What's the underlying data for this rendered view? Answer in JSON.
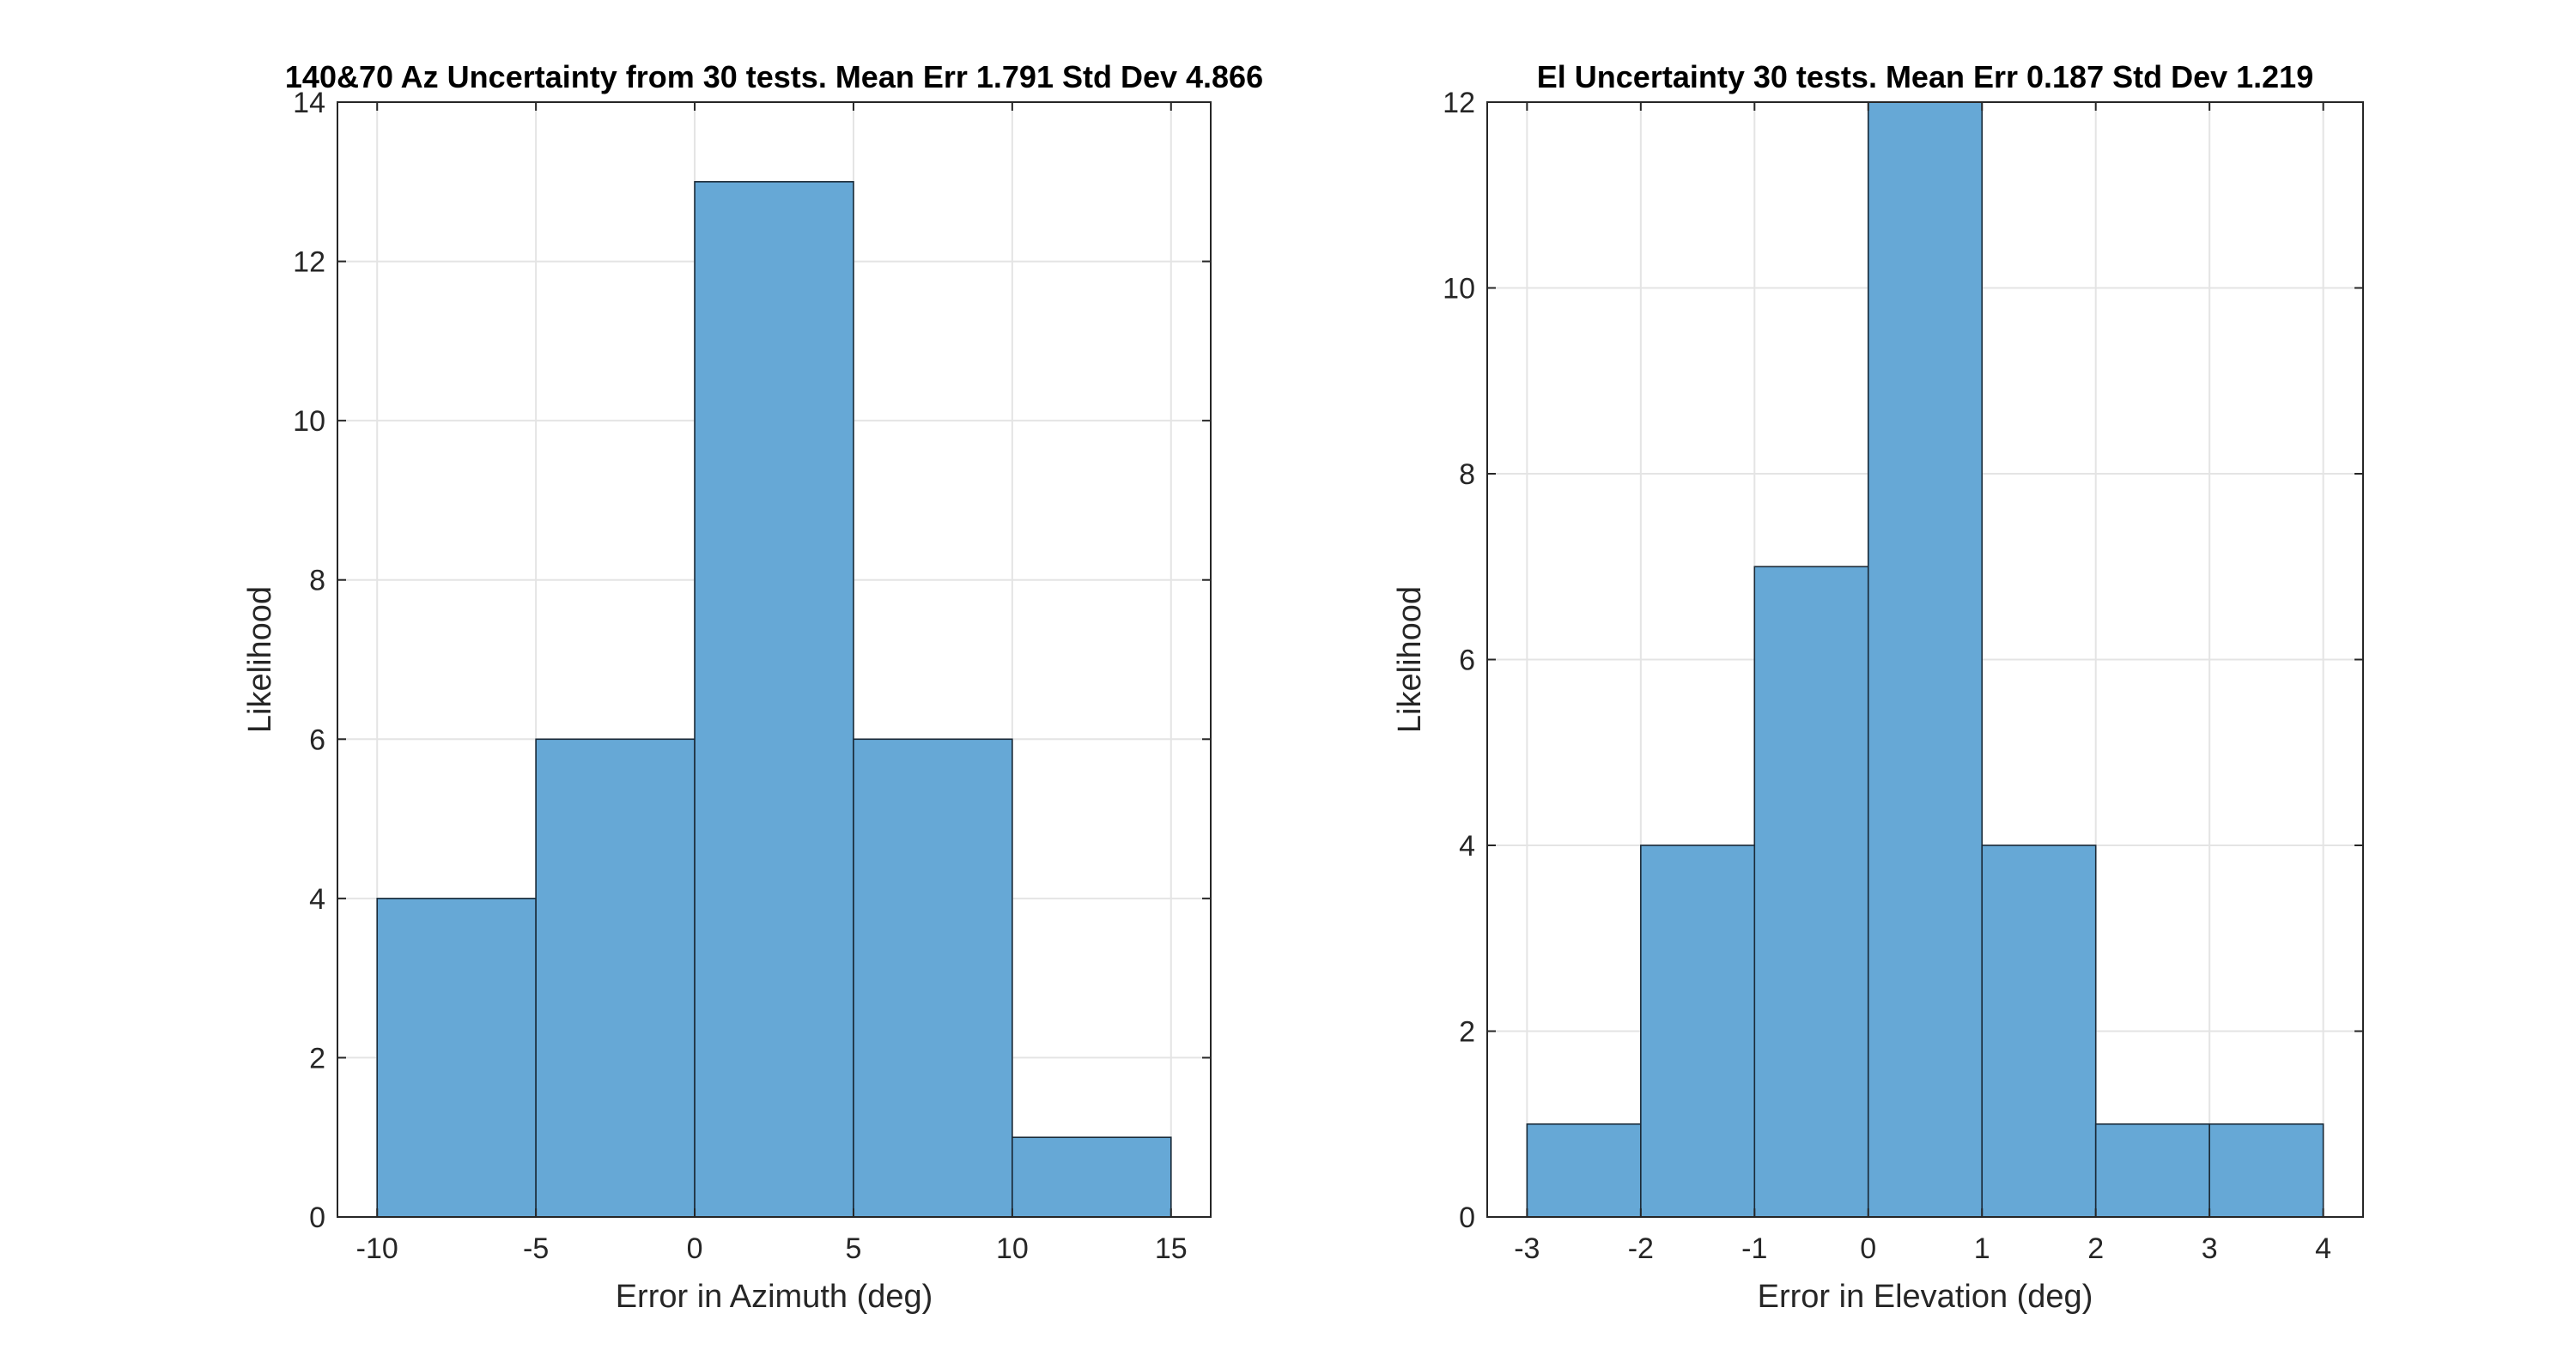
{
  "chart_data": [
    {
      "type": "bar",
      "title": "140&70 Az Uncertainty from 30 tests. Mean Err 1.791 Std Dev 4.866",
      "xlabel": "Error in Azimuth (deg)",
      "ylabel": "Likelihood",
      "bin_edges": [
        -10,
        -5,
        0,
        5,
        10,
        15
      ],
      "values": [
        4,
        6,
        13,
        6,
        1
      ],
      "xlim": [
        -11.25,
        16.25
      ],
      "ylim": [
        0,
        14
      ],
      "xticks": [
        -10,
        -5,
        0,
        5,
        10,
        15
      ],
      "xtick_labels": [
        "-10",
        "-5",
        "0",
        "5",
        "10",
        "15"
      ],
      "yticks": [
        0,
        2,
        4,
        6,
        8,
        10,
        12,
        14
      ],
      "ytick_labels": [
        "0",
        "2",
        "4",
        "6",
        "8",
        "10",
        "12",
        "14"
      ],
      "grid": true,
      "bar_color": "#66a8d6"
    },
    {
      "type": "bar",
      "title": "El Uncertainty 30 tests. Mean Err 0.187 Std Dev 1.219",
      "xlabel": "Error in Elevation (deg)",
      "ylabel": "Likelihood",
      "bin_edges": [
        -3,
        -2,
        -1,
        0,
        1,
        2,
        3,
        4
      ],
      "values": [
        1,
        4,
        7,
        12,
        4,
        1,
        1
      ],
      "xlim": [
        -3.35,
        4.35
      ],
      "ylim": [
        0,
        12
      ],
      "xticks": [
        -3,
        -2,
        -1,
        0,
        1,
        2,
        3,
        4
      ],
      "xtick_labels": [
        "-3",
        "-2",
        "-1",
        "0",
        "1",
        "2",
        "3",
        "4"
      ],
      "yticks": [
        0,
        2,
        4,
        6,
        8,
        10,
        12
      ],
      "ytick_labels": [
        "0",
        "2",
        "4",
        "6",
        "8",
        "10",
        "12"
      ],
      "grid": true,
      "bar_color": "#66a8d6"
    }
  ]
}
